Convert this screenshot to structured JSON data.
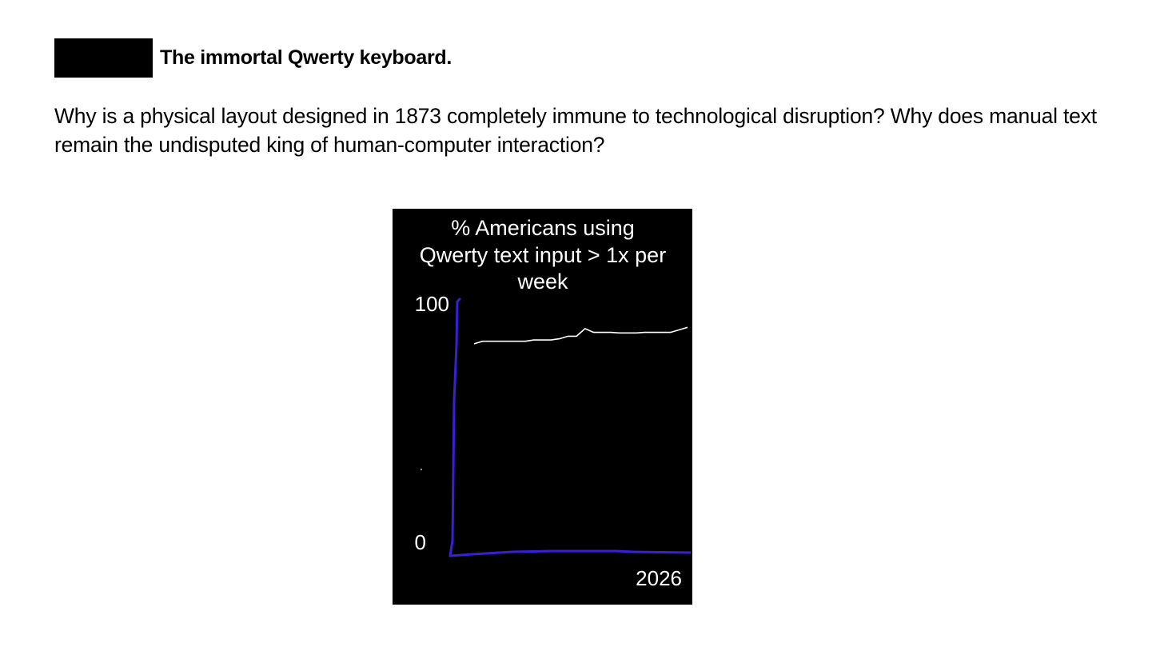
{
  "header": {
    "title": "The immortal Qwerty keyboard."
  },
  "body": {
    "text": "Why is a physical layout designed in 1873 completely immune to technological disruption? Why does manual text remain the undisputed king of human-computer interaction?"
  },
  "colors": {
    "background": "#ffffff",
    "chart_background": "#000000",
    "axis": "#3a1fd6",
    "series": "#ffffff",
    "redaction": "#000000"
  },
  "chart_data": {
    "type": "line",
    "title_lines": [
      "% Americans using",
      "Qwerty text input > 1x per",
      "week"
    ],
    "title": "% Americans using Qwerty text input > 1x per week",
    "xlabel": "",
    "ylabel": "",
    "y_ticks": [
      "100",
      "0"
    ],
    "x_ticks": [
      "2026"
    ],
    "ylim": [
      0,
      100
    ],
    "grid": false,
    "legend": "none",
    "series": [
      {
        "values": [
          83,
          84,
          84,
          84,
          84,
          84,
          84,
          84.5,
          84.5,
          84.5,
          85,
          86,
          86,
          89,
          87.5,
          87.5,
          87.5,
          87.3,
          87.3,
          87.3,
          87.5,
          87.5,
          87.5,
          87.5,
          88.5,
          89.5
        ]
      }
    ]
  }
}
